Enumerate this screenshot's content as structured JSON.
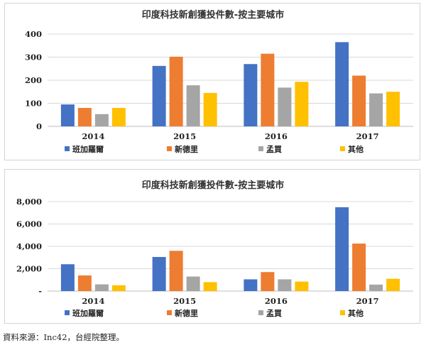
{
  "chart_data": [
    {
      "type": "bar",
      "title": "印度科技新創獲投件數-按主要城市",
      "categories": [
        "2014",
        "2015",
        "2016",
        "2017"
      ],
      "series": [
        {
          "name": "班加羅爾",
          "values": [
            95,
            262,
            270,
            365
          ]
        },
        {
          "name": "新德里",
          "values": [
            80,
            302,
            315,
            220
          ]
        },
        {
          "name": "孟買",
          "values": [
            53,
            178,
            168,
            143
          ]
        },
        {
          "name": "其他",
          "values": [
            80,
            145,
            193,
            150
          ]
        }
      ],
      "colors": [
        "#4472C4",
        "#ED7D31",
        "#A5A5A5",
        "#FFC000"
      ],
      "yticks": [
        "0",
        "100",
        "200",
        "300",
        "400"
      ],
      "ylim": [
        0,
        400
      ],
      "grid": true,
      "legend": "bottom"
    },
    {
      "type": "bar",
      "title": "印度科技新創獲投件數-按主要城市",
      "categories": [
        "2014",
        "2015",
        "2016",
        "2017"
      ],
      "series": [
        {
          "name": "班加羅爾",
          "values": [
            2400,
            3050,
            1050,
            7500
          ]
        },
        {
          "name": "新德里",
          "values": [
            1400,
            3600,
            1700,
            4250
          ]
        },
        {
          "name": "孟買",
          "values": [
            600,
            1300,
            1050,
            580
          ]
        },
        {
          "name": "其他",
          "values": [
            520,
            800,
            850,
            1100
          ]
        }
      ],
      "colors": [
        "#4472C4",
        "#ED7D31",
        "#A5A5A5",
        "#FFC000"
      ],
      "yticks": [
        "-",
        "2,000",
        "4,000",
        "6,000",
        "8,000"
      ],
      "ylim": [
        0,
        8000
      ],
      "grid": true,
      "legend": "bottom"
    }
  ],
  "footer": {
    "source": "資料來源：Inc42，台經院整理。"
  }
}
